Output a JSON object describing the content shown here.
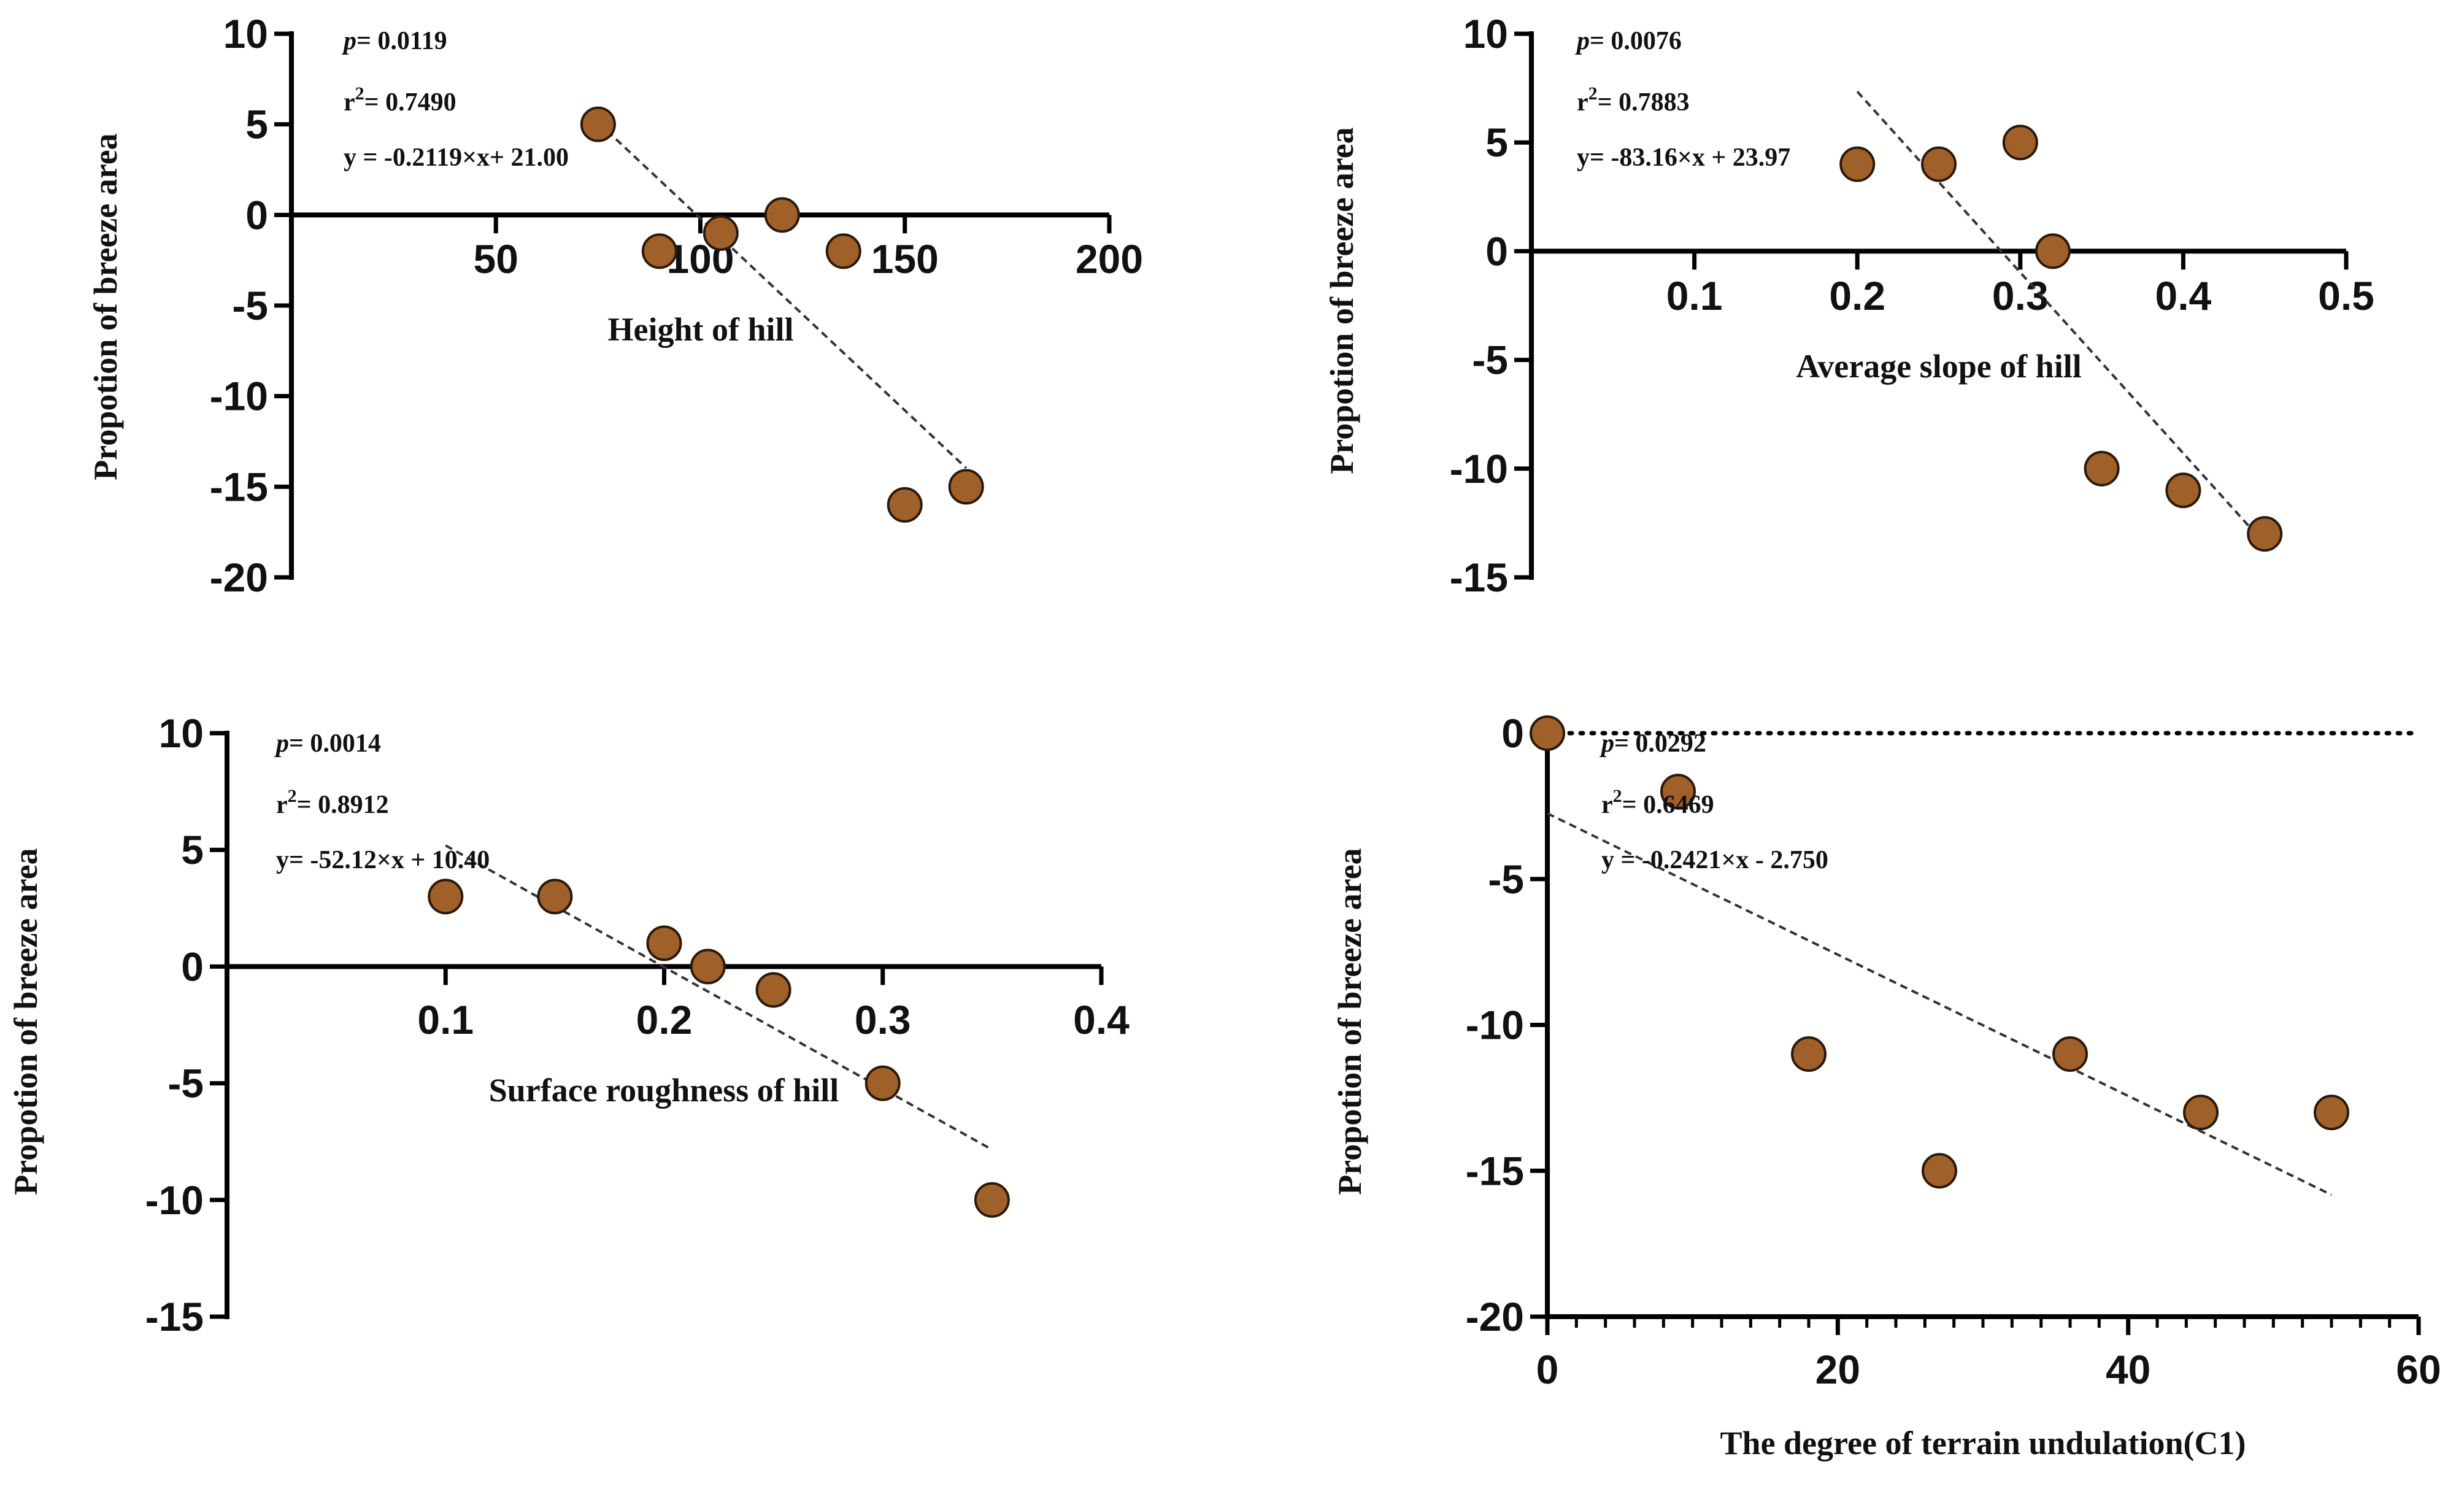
{
  "chart_data": [
    {
      "type": "scatter",
      "xlabel": "Height of hill",
      "ylabel": "Propotion of breeze area",
      "xlim": [
        0,
        200
      ],
      "ylim": [
        -20,
        10
      ],
      "xticks": [
        50,
        100,
        150,
        200
      ],
      "yticks": [
        10,
        5,
        0,
        -5,
        -10,
        -15,
        -20
      ],
      "x_axis_at_y": 0,
      "points": [
        {
          "x": 75,
          "y": 5
        },
        {
          "x": 90,
          "y": -2
        },
        {
          "x": 105,
          "y": -1
        },
        {
          "x": 120,
          "y": 0
        },
        {
          "x": 135,
          "y": -2
        },
        {
          "x": 150,
          "y": -16
        },
        {
          "x": 165,
          "y": -15
        }
      ],
      "fit": {
        "slope": -0.2119,
        "intercept": 21.0,
        "x_range": [
          75,
          165
        ]
      },
      "stats": {
        "p": "= 0.0119",
        "r2": "= 0.7490",
        "equation": "y = -0.2119×x+ 21.00"
      }
    },
    {
      "type": "scatter",
      "xlabel": "Average slope of hill",
      "ylabel": "Propotion of breeze area",
      "xlim": [
        0,
        0.5
      ],
      "ylim": [
        -15,
        10
      ],
      "xticks": [
        0.1,
        0.2,
        0.3,
        0.4,
        0.5
      ],
      "yticks": [
        10,
        5,
        0,
        -5,
        -10,
        -15
      ],
      "x_axis_at_y": 0,
      "points": [
        {
          "x": 0.2,
          "y": 4
        },
        {
          "x": 0.25,
          "y": 4
        },
        {
          "x": 0.3,
          "y": 5
        },
        {
          "x": 0.32,
          "y": 0
        },
        {
          "x": 0.35,
          "y": -10
        },
        {
          "x": 0.4,
          "y": -11
        },
        {
          "x": 0.45,
          "y": -13
        }
      ],
      "fit": {
        "slope": -83.16,
        "intercept": 23.97,
        "x_range": [
          0.2,
          0.45
        ]
      },
      "stats": {
        "p": "= 0.0076",
        "r2": "= 0.7883",
        "equation": "y= -83.16×x + 23.97"
      }
    },
    {
      "type": "scatter",
      "xlabel": "Surface roughness of hill",
      "ylabel": "Propotion of breeze area",
      "xlim": [
        0,
        0.4
      ],
      "ylim": [
        -15,
        10
      ],
      "xticks": [
        0.1,
        0.2,
        0.3,
        0.4
      ],
      "yticks": [
        10,
        5,
        0,
        -5,
        -10,
        -15
      ],
      "x_axis_at_y": 0,
      "points": [
        {
          "x": 0.1,
          "y": 3
        },
        {
          "x": 0.15,
          "y": 3
        },
        {
          "x": 0.2,
          "y": 1
        },
        {
          "x": 0.22,
          "y": 0
        },
        {
          "x": 0.25,
          "y": -1
        },
        {
          "x": 0.3,
          "y": -5
        },
        {
          "x": 0.35,
          "y": -10
        }
      ],
      "fit": {
        "slope": -52.12,
        "intercept": 10.4,
        "x_range": [
          0.1,
          0.35
        ]
      },
      "stats": {
        "p": "= 0.0014",
        "r2": "= 0.8912",
        "equation": "y= -52.12×x + 10.40"
      }
    },
    {
      "type": "scatter",
      "xlabel": "The degree of terrain undulation(C1)",
      "ylabel": "Propotion of breeze area",
      "xlim": [
        0,
        60
      ],
      "ylim": [
        -20,
        0
      ],
      "xticks": [
        0,
        20,
        40,
        60
      ],
      "yticks": [
        0,
        -5,
        -10,
        -15,
        -20
      ],
      "x_minor_step": 2,
      "x_axis_at_y": -20,
      "reference_line_y": 0,
      "points": [
        {
          "x": 0,
          "y": 0
        },
        {
          "x": 9,
          "y": -2
        },
        {
          "x": 18,
          "y": -11
        },
        {
          "x": 27,
          "y": -15
        },
        {
          "x": 36,
          "y": -11
        },
        {
          "x": 45,
          "y": -13
        },
        {
          "x": 54,
          "y": -13
        }
      ],
      "fit": {
        "slope": -0.2421,
        "intercept": -2.75,
        "x_range": [
          0,
          54
        ]
      },
      "stats": {
        "p": "= 0.0292",
        "r2": "= 0.6469",
        "equation": "y = -0.2421×x - 2.750"
      }
    }
  ],
  "stat_labels": {
    "p": "p",
    "r2": "r",
    "r2_sup": "2"
  },
  "colors": {
    "point_fill": "#a0602a",
    "point_stroke": "#2a1a0a",
    "axis": "#000000",
    "fit_line": "#333333"
  }
}
